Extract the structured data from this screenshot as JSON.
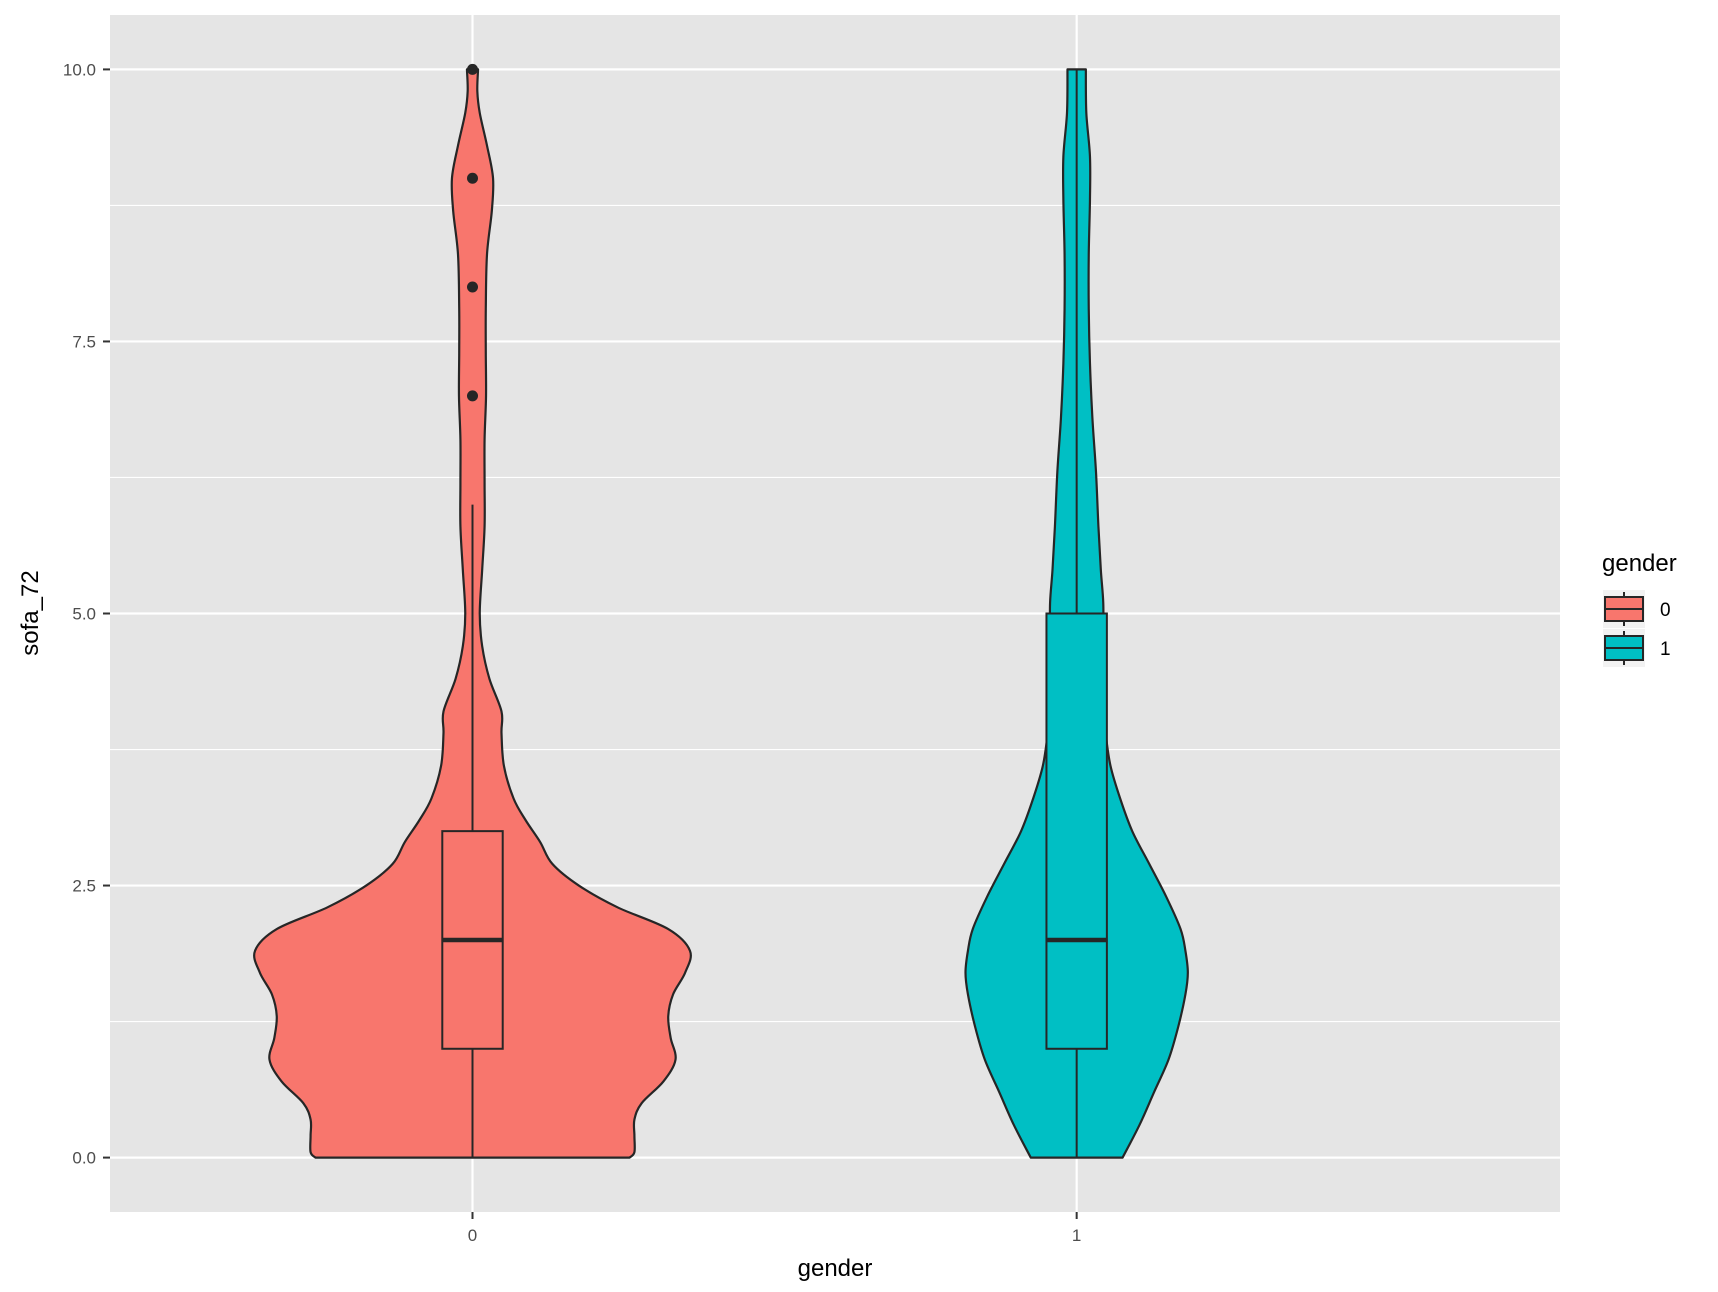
{
  "chart_data": {
    "type": "violin",
    "xlabel": "gender",
    "ylabel": "sofa_72",
    "categories": [
      "0",
      "1"
    ],
    "ylim": [
      -0.5,
      10.5
    ],
    "y_ticks": [
      0.0,
      2.5,
      5.0,
      7.5,
      10.0
    ],
    "y_tick_labels": [
      "0.0",
      "2.5",
      "5.0",
      "7.5",
      "10.0"
    ],
    "grid": true,
    "legend": {
      "title": "gender",
      "position": "right",
      "entries": [
        {
          "label": "0",
          "color": "#F8766D"
        },
        {
          "label": "1",
          "color": "#00BFC4"
        }
      ]
    },
    "series": [
      {
        "category": "0",
        "color": "#F8766D",
        "boxplot": {
          "min": 0,
          "q1": 1,
          "median": 2,
          "q3": 3,
          "max": 6
        },
        "outliers": [
          7,
          8,
          9,
          10
        ],
        "density_halfwidth": [
          [
            0.0,
            0.65
          ],
          [
            0.05,
            0.67
          ],
          [
            0.2,
            0.67
          ],
          [
            0.35,
            0.67
          ],
          [
            0.5,
            0.7
          ],
          [
            0.7,
            0.79
          ],
          [
            0.9,
            0.84
          ],
          [
            1.1,
            0.82
          ],
          [
            1.3,
            0.81
          ],
          [
            1.5,
            0.83
          ],
          [
            1.7,
            0.88
          ],
          [
            1.9,
            0.9
          ],
          [
            2.1,
            0.81
          ],
          [
            2.3,
            0.6
          ],
          [
            2.5,
            0.44
          ],
          [
            2.7,
            0.33
          ],
          [
            2.9,
            0.28
          ],
          [
            3.1,
            0.22
          ],
          [
            3.3,
            0.17
          ],
          [
            3.6,
            0.13
          ],
          [
            3.9,
            0.12
          ],
          [
            4.1,
            0.12
          ],
          [
            4.4,
            0.07
          ],
          [
            4.7,
            0.04
          ],
          [
            5.0,
            0.03
          ],
          [
            5.4,
            0.04
          ],
          [
            5.8,
            0.05
          ],
          [
            6.2,
            0.05
          ],
          [
            6.6,
            0.05
          ],
          [
            7.0,
            0.056
          ],
          [
            7.4,
            0.055
          ],
          [
            7.8,
            0.055
          ],
          [
            8.3,
            0.06
          ],
          [
            8.7,
            0.08
          ],
          [
            9.0,
            0.085
          ],
          [
            9.3,
            0.06
          ],
          [
            9.6,
            0.03
          ],
          [
            9.8,
            0.02
          ],
          [
            10.0,
            0.023
          ]
        ]
      },
      {
        "category": "1",
        "color": "#00BFC4",
        "boxplot": {
          "min": 0,
          "q1": 1,
          "median": 2,
          "q3": 5,
          "max": 10
        },
        "outliers": [],
        "density_halfwidth": [
          [
            0.0,
            0.19
          ],
          [
            0.3,
            0.26
          ],
          [
            0.6,
            0.32
          ],
          [
            0.9,
            0.38
          ],
          [
            1.2,
            0.42
          ],
          [
            1.5,
            0.45
          ],
          [
            1.7,
            0.46
          ],
          [
            1.9,
            0.45
          ],
          [
            2.1,
            0.43
          ],
          [
            2.4,
            0.37
          ],
          [
            2.7,
            0.3
          ],
          [
            3.0,
            0.23
          ],
          [
            3.3,
            0.18
          ],
          [
            3.6,
            0.14
          ],
          [
            3.9,
            0.12
          ],
          [
            4.2,
            0.11
          ],
          [
            4.5,
            0.11
          ],
          [
            4.8,
            0.11
          ],
          [
            5.1,
            0.11
          ],
          [
            5.4,
            0.1
          ],
          [
            5.8,
            0.09
          ],
          [
            6.3,
            0.08
          ],
          [
            6.8,
            0.065
          ],
          [
            7.3,
            0.055
          ],
          [
            7.8,
            0.05
          ],
          [
            8.3,
            0.05
          ],
          [
            8.8,
            0.055
          ],
          [
            9.2,
            0.055
          ],
          [
            9.6,
            0.04
          ],
          [
            10.0,
            0.038
          ]
        ]
      }
    ]
  }
}
